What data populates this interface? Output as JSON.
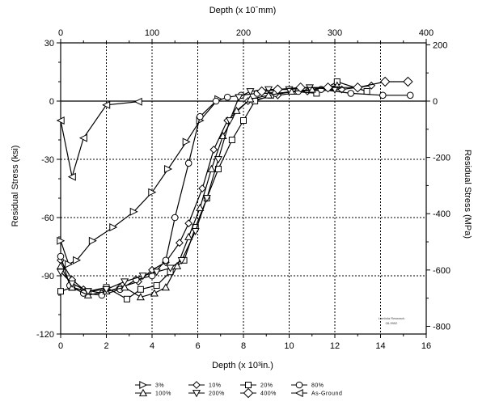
{
  "chart_data": {
    "type": "line",
    "xlabel": "Depth (x 10³in.)",
    "ylabel": "Residual Stress (ksi)",
    "top_xlabel": "Depth (x 10ˉmm)",
    "right_ylabel": "Residual Stress (MPa)",
    "xlim": [
      0,
      16
    ],
    "ylim": [
      -120,
      30
    ],
    "top_xlim": [
      0,
      400
    ],
    "right_ylim": [
      -827.4,
      206.8
    ],
    "x_ticks": [
      "0",
      "2",
      "4",
      "6",
      "8",
      "10",
      "12",
      "14",
      "16"
    ],
    "y_ticks": [
      "30",
      "0",
      "-30",
      "-60",
      "-90",
      "-120"
    ],
    "top_x_ticks": [
      "0",
      "100",
      "200",
      "300",
      "400"
    ],
    "right_y_ticks": [
      "200",
      "0",
      "-200",
      "-400",
      "-600",
      "-800"
    ],
    "grid": true,
    "legend_position": "bottom",
    "series": [
      {
        "name": "3%",
        "marker": "triangle-right",
        "x": [
          0,
          0.35,
          0.7,
          1.4,
          2.3,
          3.2,
          4.0,
          4.7,
          5.5,
          6.1,
          6.9
        ],
        "y": [
          -72,
          -84,
          -82,
          -72,
          -65,
          -57,
          -47,
          -35,
          -21,
          -10,
          1
        ]
      },
      {
        "name": "10%",
        "marker": "diamond",
        "x": [
          0,
          0.5,
          1.0,
          1.8,
          2.6,
          3.4,
          4.0,
          4.6,
          5.2,
          5.6,
          6.2,
          6.7,
          7.3,
          8.2,
          9.5,
          10.8,
          12.3,
          13.6
        ],
        "y": [
          -82,
          -92,
          -97,
          -99,
          -96,
          -93,
          -87,
          -83,
          -73,
          -63,
          -45,
          -25,
          -10,
          0,
          3,
          5,
          6,
          8
        ]
      },
      {
        "name": "20%",
        "marker": "square",
        "x": [
          0,
          0.5,
          1.2,
          2.0,
          2.9,
          3.5,
          4.2,
          4.8,
          5.4,
          5.9,
          6.4,
          6.9,
          7.5,
          8.0,
          8.5,
          9.2,
          10.2,
          11.2,
          12.1,
          13.4
        ],
        "y": [
          -98,
          -96,
          -98,
          -96,
          -102,
          -97,
          -95,
          -88,
          -82,
          -65,
          -50,
          -35,
          -20,
          -10,
          0,
          3,
          5,
          4,
          10,
          5
        ]
      },
      {
        "name": "80%",
        "marker": "circle",
        "x": [
          0,
          0.4,
          1.0,
          1.8,
          2.6,
          3.3,
          4.0,
          4.6,
          5.0,
          5.6,
          6.1,
          6.8,
          7.3,
          7.9,
          8.6,
          9.4,
          10.4,
          11.4,
          12.7,
          14.1,
          15.3
        ],
        "y": [
          -80,
          -95,
          -99,
          -100,
          -97,
          -92,
          -90,
          -82,
          -60,
          -32,
          -8,
          0,
          2,
          3,
          4,
          4,
          5,
          6,
          4,
          3,
          3
        ]
      },
      {
        "name": "100%",
        "marker": "triangle-up",
        "x": [
          0,
          0.5,
          1.2,
          2.0,
          2.8,
          3.5,
          4.1,
          4.6,
          5.1,
          5.6,
          6.1,
          6.6,
          7.1,
          7.7,
          8.3,
          9.1,
          10.1,
          11.0,
          12.1
        ],
        "y": [
          -85,
          -96,
          -100,
          -98,
          -96,
          -101,
          -99,
          -96,
          -85,
          -70,
          -55,
          -35,
          -18,
          -5,
          1,
          3,
          5,
          6,
          8
        ]
      },
      {
        "name": "200%",
        "marker": "triangle-down",
        "x": [
          0,
          0.5,
          1.2,
          2.0,
          2.8,
          3.6,
          4.2,
          4.8,
          5.3,
          5.9,
          6.4,
          6.9,
          7.4,
          7.8,
          8.3,
          9.1,
          10.0,
          10.9,
          12.0
        ],
        "y": [
          -88,
          -94,
          -98,
          -97,
          -93,
          -90,
          -88,
          -86,
          -82,
          -67,
          -50,
          -30,
          -10,
          2,
          5,
          6,
          6,
          7,
          6
        ]
      },
      {
        "name": "400%",
        "marker": "diamond-large",
        "x": [
          8.8,
          9.5,
          10.5,
          11.7,
          13.0,
          14.2,
          15.2
        ],
        "y": [
          5,
          6,
          7,
          7,
          7,
          10,
          10
        ]
      },
      {
        "name": "As-Ground",
        "marker": "triangle-left",
        "x": [
          0,
          0.5,
          1.0,
          2.0,
          3.4
        ],
        "y": [
          -10,
          -39,
          -19,
          -2,
          -0.3
        ]
      }
    ],
    "annotation": [
      "Lambda Research",
      "08-9952"
    ]
  }
}
